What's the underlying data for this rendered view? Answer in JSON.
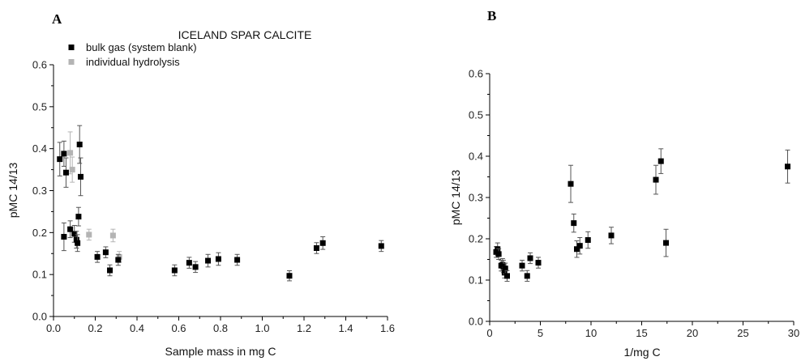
{
  "chart_data": [
    {
      "type": "scatter",
      "panel_label": "A",
      "title": "ICELAND SPAR CALCITE",
      "xlabel": "Sample mass in mg C",
      "ylabel": "pMC 14/13",
      "xlim": [
        0,
        1.6
      ],
      "ylim": [
        0,
        0.6
      ],
      "xticks": [
        "0.0",
        "0.2",
        "0.4",
        "0.6",
        "0.8",
        "1.0",
        "1.2",
        "1.4",
        "1.6"
      ],
      "yticks": [
        "0.0",
        "0.1",
        "0.2",
        "0.3",
        "0.4",
        "0.5",
        "0.6"
      ],
      "legend_position": "top-left",
      "series": [
        {
          "name": "bulk gas (system blank)",
          "color": "#000000",
          "points": [
            {
              "x": 0.03,
              "y": 0.375,
              "err": 0.04
            },
            {
              "x": 0.05,
              "y": 0.19,
              "err": 0.033
            },
            {
              "x": 0.05,
              "y": 0.388,
              "err": 0.03
            },
            {
              "x": 0.06,
              "y": 0.343,
              "err": 0.035
            },
            {
              "x": 0.08,
              "y": 0.208,
              "err": 0.02
            },
            {
              "x": 0.1,
              "y": 0.197,
              "err": 0.02
            },
            {
              "x": 0.11,
              "y": 0.183,
              "err": 0.02
            },
            {
              "x": 0.115,
              "y": 0.175,
              "err": 0.02
            },
            {
              "x": 0.12,
              "y": 0.238,
              "err": 0.022
            },
            {
              "x": 0.125,
              "y": 0.41,
              "err": 0.045
            },
            {
              "x": 0.13,
              "y": 0.333,
              "err": 0.045
            },
            {
              "x": 0.21,
              "y": 0.142,
              "err": 0.013
            },
            {
              "x": 0.25,
              "y": 0.153,
              "err": 0.013
            },
            {
              "x": 0.27,
              "y": 0.11,
              "err": 0.013
            },
            {
              "x": 0.31,
              "y": 0.135,
              "err": 0.013
            },
            {
              "x": 0.58,
              "y": 0.11,
              "err": 0.013
            },
            {
              "x": 0.65,
              "y": 0.128,
              "err": 0.013
            },
            {
              "x": 0.68,
              "y": 0.118,
              "err": 0.013
            },
            {
              "x": 0.74,
              "y": 0.133,
              "err": 0.015
            },
            {
              "x": 0.79,
              "y": 0.137,
              "err": 0.015
            },
            {
              "x": 0.88,
              "y": 0.135,
              "err": 0.013
            },
            {
              "x": 1.13,
              "y": 0.097,
              "err": 0.012
            },
            {
              "x": 1.26,
              "y": 0.163,
              "err": 0.013
            },
            {
              "x": 1.29,
              "y": 0.175,
              "err": 0.015
            },
            {
              "x": 1.57,
              "y": 0.168,
              "err": 0.013
            }
          ]
        },
        {
          "name": "individual hydrolysis",
          "color": "#b4b4b4",
          "points": [
            {
              "x": 0.08,
              "y": 0.39,
              "err": 0.05
            },
            {
              "x": 0.09,
              "y": 0.35,
              "err": 0.03
            },
            {
              "x": 0.17,
              "y": 0.195,
              "err": 0.013
            },
            {
              "x": 0.285,
              "y": 0.193,
              "err": 0.015
            },
            {
              "x": 0.315,
              "y": 0.142,
              "err": 0.013
            }
          ]
        }
      ]
    },
    {
      "type": "scatter",
      "panel_label": "B",
      "xlabel": "1/mg C",
      "ylabel": "pMC 14/13",
      "xlim": [
        0,
        30
      ],
      "ylim": [
        0,
        0.6
      ],
      "xticks": [
        "0",
        "5",
        "10",
        "15",
        "20",
        "25",
        "30"
      ],
      "yticks": [
        "0.0",
        "0.1",
        "0.2",
        "0.3",
        "0.4",
        "0.5",
        "0.6"
      ],
      "series": [
        {
          "color": "#000000",
          "points": [
            {
              "x": 0.64,
              "y": 0.168,
              "err": 0.013
            },
            {
              "x": 0.78,
              "y": 0.175,
              "err": 0.015
            },
            {
              "x": 0.89,
              "y": 0.163,
              "err": 0.013
            },
            {
              "x": 1.14,
              "y": 0.135,
              "err": 0.013
            },
            {
              "x": 1.27,
              "y": 0.137,
              "err": 0.015
            },
            {
              "x": 1.35,
              "y": 0.133,
              "err": 0.015
            },
            {
              "x": 1.47,
              "y": 0.118,
              "err": 0.013
            },
            {
              "x": 1.54,
              "y": 0.128,
              "err": 0.013
            },
            {
              "x": 1.72,
              "y": 0.11,
              "err": 0.013
            },
            {
              "x": 3.2,
              "y": 0.135,
              "err": 0.013
            },
            {
              "x": 3.7,
              "y": 0.11,
              "err": 0.013
            },
            {
              "x": 4.0,
              "y": 0.153,
              "err": 0.013
            },
            {
              "x": 4.8,
              "y": 0.142,
              "err": 0.013
            },
            {
              "x": 8.0,
              "y": 0.333,
              "err": 0.045
            },
            {
              "x": 8.3,
              "y": 0.238,
              "err": 0.022
            },
            {
              "x": 8.6,
              "y": 0.175,
              "err": 0.02
            },
            {
              "x": 8.9,
              "y": 0.183,
              "err": 0.02
            },
            {
              "x": 9.7,
              "y": 0.197,
              "err": 0.02
            },
            {
              "x": 12.0,
              "y": 0.208,
              "err": 0.02
            },
            {
              "x": 16.4,
              "y": 0.343,
              "err": 0.035
            },
            {
              "x": 16.9,
              "y": 0.388,
              "err": 0.03
            },
            {
              "x": 17.4,
              "y": 0.19,
              "err": 0.033
            },
            {
              "x": 29.4,
              "y": 0.375,
              "err": 0.04
            }
          ]
        }
      ]
    }
  ]
}
